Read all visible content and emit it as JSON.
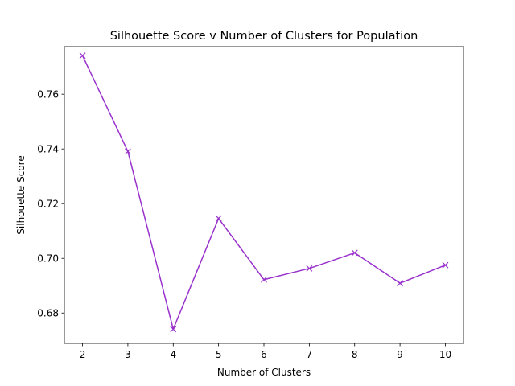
{
  "chart_data": {
    "type": "line",
    "title": "Silhouette Score v Number of Clusters for Population",
    "xlabel": "Number of Clusters",
    "ylabel": "Silhouette Score",
    "x": [
      2,
      3,
      4,
      5,
      6,
      7,
      8,
      9,
      10
    ],
    "series": [
      {
        "name": "Silhouette Score",
        "values": [
          0.7741,
          0.7391,
          0.6741,
          0.7146,
          0.6922,
          0.6963,
          0.702,
          0.6909,
          0.6975
        ],
        "color": "#9932CC",
        "marker": "x"
      }
    ],
    "xlim": [
      1.6,
      10.4
    ],
    "ylim": [
      0.6689,
      0.7774
    ],
    "xticks": [
      2,
      3,
      4,
      5,
      6,
      7,
      8,
      9,
      10
    ],
    "yticks": [
      0.68,
      0.7,
      0.72,
      0.74,
      0.76
    ],
    "ytick_labels": [
      "0.68",
      "0.70",
      "0.72",
      "0.74",
      "0.76"
    ],
    "grid": false,
    "legend": "none"
  }
}
